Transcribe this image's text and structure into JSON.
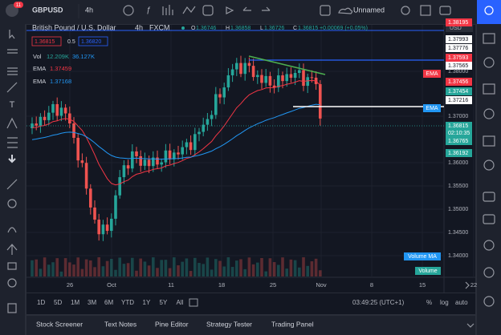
{
  "top_bar": {
    "symbol": "GBPUSD",
    "interval": "4h",
    "layout_name": "Unnamed",
    "badge": "11"
  },
  "legend": {
    "title": "British Pound / U.S. Dollar",
    "interval": "4h",
    "exchange": "FXCM",
    "open_label": "O",
    "open": "1.36746",
    "high_label": "H",
    "high": "1.36858",
    "low_label": "L",
    "low": "1.36726",
    "close_label": "C",
    "close": "1.36815",
    "change": "+0.00069 (+0.05%)",
    "bid": "1.36815",
    "spread": "0.5",
    "ask": "1.36820",
    "volume_label": "Vol",
    "volume": "12.209K",
    "volume_ma": "36.127K",
    "ema1_label": "EMA",
    "ema1": "1.37459",
    "ema2_label": "EMA",
    "ema2": "1.37168"
  },
  "price_axis": {
    "currency": "USD",
    "labels": [
      "1.38195",
      "1.37993",
      "1.37776",
      "1.37593",
      "1.37565",
      "1.38000",
      "1.37456",
      "1.37454",
      "1.37216",
      "1.37000",
      "1.36815",
      "02:10:35",
      "1.36765",
      "1.36192",
      "1.36000",
      "1.35500",
      "1.35000",
      "1.34500",
      "1.34000"
    ],
    "tags": [
      "EMA",
      "EMA",
      "Volume MA",
      "Volume"
    ]
  },
  "time_axis": [
    "26",
    "Oct",
    "11",
    "18",
    "25",
    "Nov",
    "8",
    "15",
    "22"
  ],
  "bottom_bar": {
    "ranges": [
      "1D",
      "5D",
      "1M",
      "3M",
      "6M",
      "YTD",
      "1Y",
      "5Y",
      "All"
    ],
    "clock": "03:49:25 (UTC+1)",
    "options": [
      "%",
      "log",
      "auto"
    ]
  },
  "tabs": [
    "Stock Screener",
    "Text Notes",
    "Pine Editor",
    "Strategy Tester",
    "Trading Panel"
  ]
}
